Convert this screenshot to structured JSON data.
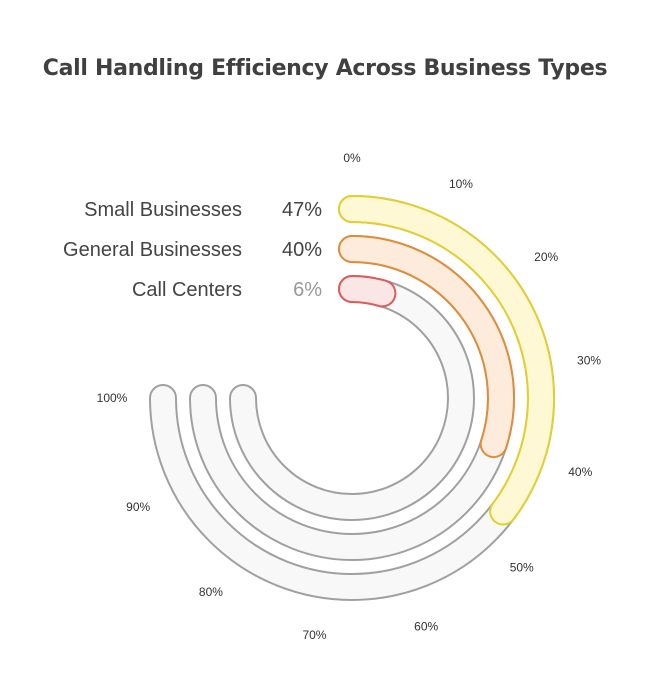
{
  "chart_data": {
    "type": "radial-bar",
    "title": "Call Handling Efficiency Across Business Types",
    "unit": "%",
    "max": 100,
    "ticks": [
      "0%",
      "10%",
      "20%",
      "30%",
      "40%",
      "50%",
      "60%",
      "70%",
      "80%",
      "90%",
      "100%"
    ],
    "series": [
      {
        "name": "Small Businesses",
        "value": 47,
        "label": "47%",
        "fill": "#fff8d4",
        "stroke": "#e3cf2f",
        "label_color": "#444444"
      },
      {
        "name": "General Businesses",
        "value": 40,
        "label": "40%",
        "fill": "#fdebdc",
        "stroke": "#df8d3a",
        "label_color": "#444444"
      },
      {
        "name": "Call Centers",
        "value": 6,
        "label": "6%",
        "fill": "#fbe6e6",
        "stroke": "#dc5b5b",
        "label_color": "#999999"
      }
    ],
    "track_fill": "#f8f8f8",
    "track_stroke": "#a0a0a0",
    "grid": false,
    "legend": "left labels"
  }
}
